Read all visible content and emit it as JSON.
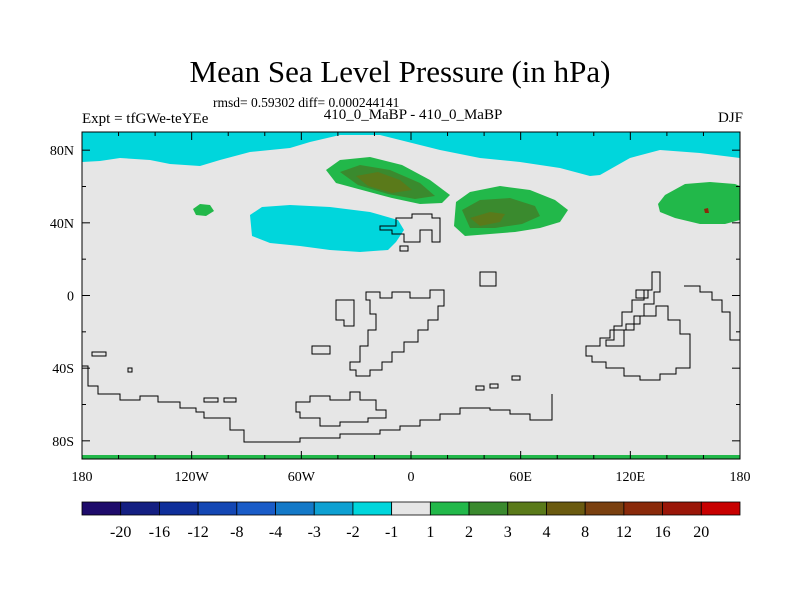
{
  "chart_data": {
    "type": "contour-map",
    "title": "Mean Sea Level Pressure (in hPa)",
    "stats_line": "rmsd= 0.59302 diff= 0.000244141",
    "left_label": "Expt = tfGWe-teYEe",
    "center_label": "410_0_MaBP - 410_0_MaBP",
    "right_label": "DJF",
    "x_ticks": [
      "180",
      "120W",
      "60W",
      "0",
      "60E",
      "120E",
      "180"
    ],
    "y_ticks": [
      "80N",
      "40N",
      "0",
      "40S",
      "80S"
    ],
    "xlim": [
      -180,
      180
    ],
    "ylim": [
      -90,
      90
    ],
    "colorbar_labels": [
      "-20",
      "-16",
      "-12",
      "-8",
      "-4",
      "-3",
      "-2",
      "-1",
      "1",
      "2",
      "3",
      "4",
      "8",
      "12",
      "16",
      "20"
    ],
    "colorbar_colors": [
      "#1e0b6b",
      "#141f82",
      "#0f2f9a",
      "#1447b4",
      "#1a5cc8",
      "#1479c8",
      "#0ea0d2",
      "#00d6dc",
      "#e6e6e6",
      "#22b84a",
      "#3a8a2e",
      "#5a7a1a",
      "#6a5a10",
      "#7a4010",
      "#8a2a0a",
      "#9a1608",
      "#c80000"
    ],
    "regions": [
      {
        "name": "arctic-band",
        "level": "-2 to -1"
      },
      {
        "name": "n-atlantic-low",
        "level": "-2 to -1"
      },
      {
        "name": "n-atlantic-high",
        "level": "1 to 3"
      },
      {
        "name": "eurasia-high",
        "level": "1 to 3"
      },
      {
        "name": "n-pacific-high",
        "level": "1 to 3"
      },
      {
        "name": "small-high-150w",
        "level": "1 to 2"
      }
    ]
  }
}
